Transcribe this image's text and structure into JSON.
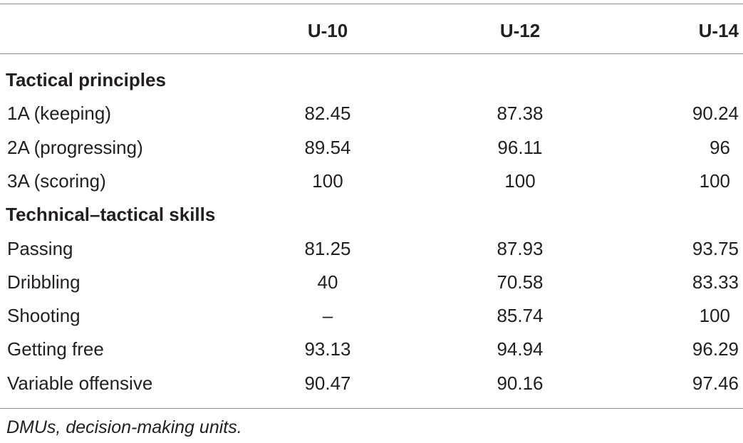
{
  "table": {
    "columns": [
      "",
      "U-10",
      "U-12",
      "U-14"
    ],
    "sections": [
      {
        "title": "Tactical principles",
        "rows": [
          {
            "label": "1A (keeping)",
            "u10": "82.45",
            "u12": "87.38",
            "u14": "90.24"
          },
          {
            "label": "2A (progressing)",
            "u10": "89.54",
            "u12": "96.11",
            "u14": "96"
          },
          {
            "label": "3A (scoring)",
            "u10": "100",
            "u12": "100",
            "u14": "100"
          }
        ]
      },
      {
        "title": "Technical–tactical skills",
        "rows": [
          {
            "label": "Passing",
            "u10": "81.25",
            "u12": "87.93",
            "u14": "93.75"
          },
          {
            "label": "Dribbling",
            "u10": "40",
            "u12": "70.58",
            "u14": "83.33"
          },
          {
            "label": "Shooting",
            "u10": "–",
            "u12": "85.74",
            "u14": "100"
          },
          {
            "label": "Getting free",
            "u10": "93.13",
            "u12": "94.94",
            "u14": "96.29"
          },
          {
            "label": "Variable offensive",
            "u10": "90.47",
            "u12": "90.16",
            "u14": "97.46"
          }
        ]
      }
    ],
    "footnote": "DMUs, decision-making units."
  }
}
